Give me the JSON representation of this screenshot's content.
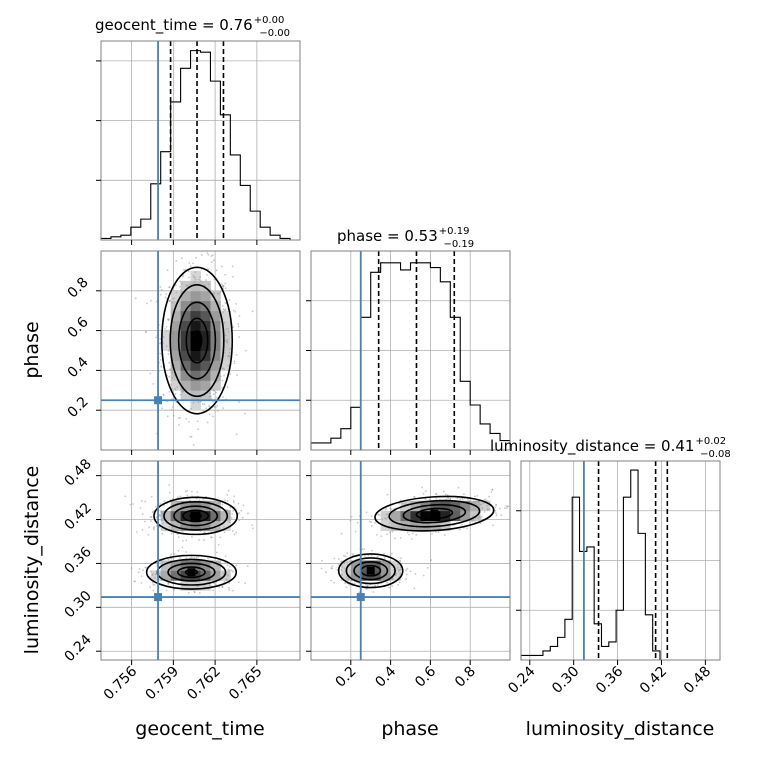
{
  "chart_data": {
    "type": "corner",
    "parameters": [
      "geocent_time",
      "phase",
      "luminosity_distance"
    ],
    "truths": {
      "geocent_time": 0.7579,
      "phase": 0.25,
      "luminosity_distance": 0.314
    },
    "ranges": {
      "geocent_time": [
        0.7538,
        0.7681
      ],
      "phase": [
        0.0,
        1.0
      ],
      "luminosity_distance": [
        0.228,
        0.5
      ]
    },
    "xticks": {
      "geocent_time": [
        "0.756",
        "0.759",
        "0.762",
        "0.765"
      ],
      "phase": [
        "0.2",
        "0.4",
        "0.6",
        "0.8"
      ],
      "luminosity_distance": [
        "0.24",
        "0.30",
        "0.36",
        "0.42",
        "0.48"
      ]
    },
    "yticks": {
      "phase": [
        "0.2",
        "0.4",
        "0.6",
        "0.8"
      ],
      "luminosity_distance": [
        "0.24",
        "0.30",
        "0.36",
        "0.42",
        "0.48"
      ]
    },
    "diagonal": [
      {
        "parameter": "geocent_time",
        "title_main": "geocent_time = 0.76",
        "title_plus": "+0.00",
        "title_minus": "−0.00",
        "quantiles": [
          0.7588,
          0.7607,
          0.7626
        ],
        "bin_edges_start": 0.7538,
        "bin_width": 0.000715,
        "counts": [
          1,
          2,
          3,
          8,
          13,
          35,
          55,
          86,
          107,
          118,
          117,
          99,
          78,
          53,
          34,
          18,
          8,
          3,
          1,
          0
        ],
        "ylim": [
          0,
          124
        ]
      },
      {
        "parameter": "phase",
        "title_main": "phase = 0.53",
        "title_plus": "+0.19",
        "title_minus": "−0.19",
        "quantiles": [
          0.34,
          0.53,
          0.72
        ],
        "bin_edges_start": 0.0,
        "bin_width": 0.05,
        "counts": [
          3,
          3,
          5,
          9,
          18,
          56,
          75,
          79,
          79,
          76,
          79,
          79,
          77,
          71,
          56,
          29,
          19,
          11,
          7,
          4
        ],
        "ylim": [
          0,
          84
        ]
      },
      {
        "parameter": "luminosity_distance",
        "title_main": "luminosity_distance = 0.41",
        "title_plus": "+0.02",
        "title_minus": "−0.08",
        "quantiles": [
          0.334,
          0.412,
          0.428
        ],
        "bin_edges_start": 0.228,
        "bin_width": 0.01,
        "counts": [
          1,
          1,
          1,
          2,
          3,
          5,
          9,
          36,
          24,
          25,
          8,
          3,
          4,
          11,
          36,
          42,
          28,
          10,
          2,
          0
        ],
        "ylim": [
          0,
          44
        ]
      }
    ],
    "pairs": [
      {
        "x": "geocent_time",
        "y": "phase",
        "modes": [
          {
            "cx": 0.7607,
            "cy": 0.55,
            "sx": 0.0011,
            "sy": 0.16
          }
        ],
        "contour_levels": 5
      },
      {
        "x": "geocent_time",
        "y": "luminosity_distance",
        "modes": [
          {
            "cx": 0.7606,
            "cy": 0.425,
            "sx": 0.0013,
            "sy": 0.011
          },
          {
            "cx": 0.7603,
            "cy": 0.348,
            "sx": 0.0014,
            "sy": 0.01
          }
        ],
        "contour_levels": 5
      },
      {
        "x": "phase",
        "y": "luminosity_distance",
        "modes": [
          {
            "cx": 0.62,
            "cy": 0.428,
            "sx": 0.13,
            "sy": 0.01,
            "tilt": 0.035
          },
          {
            "cx": 0.3,
            "cy": 0.35,
            "sx": 0.07,
            "sy": 0.01
          }
        ],
        "contour_levels": 4
      }
    ],
    "colors": {
      "truth": "#4682b4",
      "hist": "#000000",
      "grid": "#b0b0b0",
      "points": "#9a9a9a"
    }
  }
}
